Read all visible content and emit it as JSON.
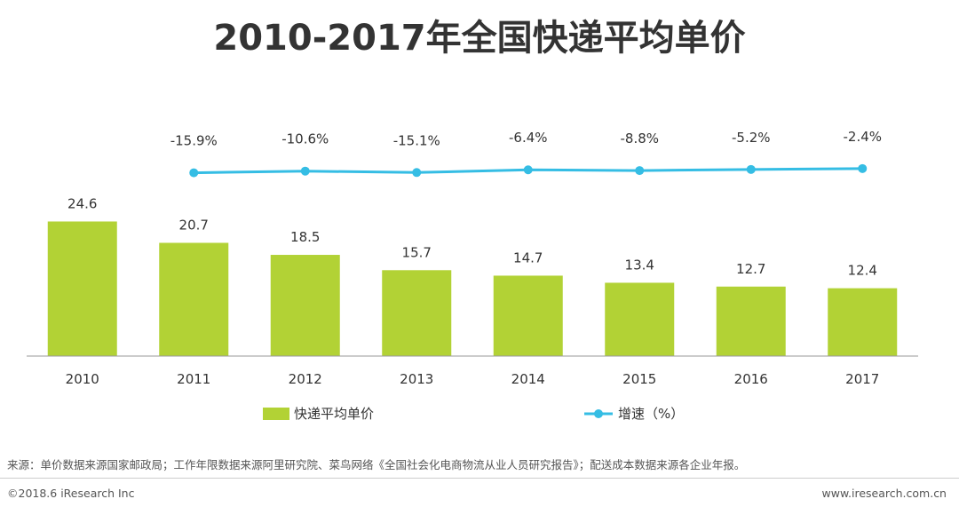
{
  "title": "2010-2017年全国快递平均单价",
  "chart_data": {
    "type": "bar",
    "title": "2010-2017年全国快递平均单价",
    "categories": [
      "2010",
      "2011",
      "2012",
      "2013",
      "2014",
      "2015",
      "2016",
      "2017"
    ],
    "series": [
      {
        "name": "快递平均单价",
        "type": "bar",
        "color": "#b2d235",
        "values": [
          24.6,
          20.7,
          18.5,
          15.7,
          14.7,
          13.4,
          12.7,
          12.4
        ],
        "labels": [
          "24.6",
          "20.7",
          "18.5",
          "15.7",
          "14.7",
          "13.4",
          "12.7",
          "12.4"
        ]
      },
      {
        "name": "增速（%）",
        "type": "line",
        "color": "#35bde4",
        "values": [
          null,
          -15.9,
          -10.6,
          -15.1,
          -6.4,
          -8.8,
          -5.2,
          -2.4
        ],
        "labels": [
          "",
          "-15.9%",
          "-10.6%",
          "-15.1%",
          "-6.4%",
          "-8.8%",
          "-5.2%",
          "-2.4%"
        ]
      }
    ],
    "ylim_bar": [
      0,
      25
    ],
    "ylim_line": [
      -100,
      0
    ],
    "legend": "bottom"
  },
  "footer": {
    "source": "来源：单价数据来源国家邮政局；工作年限数据来源阿里研究院、菜鸟网络《全国社会化电商物流从业人员研究报告》；配送成本数据来源各企业年报。",
    "copyright": "©2018.6 iResearch Inc",
    "website": "www.iresearch.com.cn"
  }
}
